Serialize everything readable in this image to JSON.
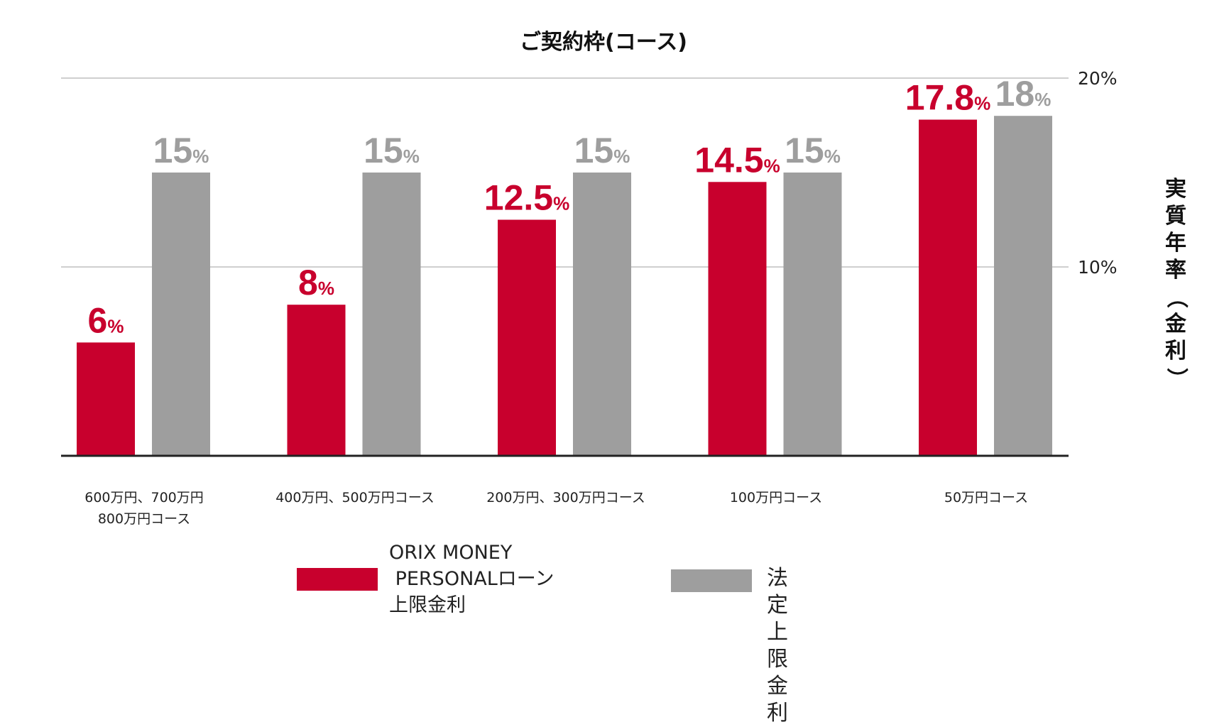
{
  "chart_data": {
    "type": "bar",
    "title": "ご契約枠(コース)",
    "ylabel": "実質年率（金利）",
    "ylim": [
      0,
      20
    ],
    "y_ticks": [
      "10%",
      "20%"
    ],
    "y_tick_values": [
      10,
      20
    ],
    "grid": true,
    "categories": [
      "600万円、700万円\n800万円コース",
      "400万円、500万円コース",
      "200万円、300万円コース",
      "100万円コース",
      "50万円コース"
    ],
    "series": [
      {
        "name": "ORIX MONEY PERSONALローン上限金利",
        "color": "#c8002d",
        "values": [
          6,
          8,
          12.5,
          14.5,
          17.8
        ],
        "labels": [
          "6",
          "8",
          "12.5",
          "14.5",
          "17.8"
        ]
      },
      {
        "name": "法定上限金利",
        "color": "#9e9e9e",
        "values": [
          15,
          15,
          15,
          15,
          18
        ],
        "labels": [
          "15",
          "15",
          "15",
          "15",
          "18"
        ]
      }
    ],
    "value_suffix": "%",
    "legend_position": "bottom"
  },
  "legend": {
    "series1_lines": [
      "ORIX MONEY",
      " PERSONALローン",
      "上限金利"
    ],
    "series2": "法定上限金利"
  }
}
